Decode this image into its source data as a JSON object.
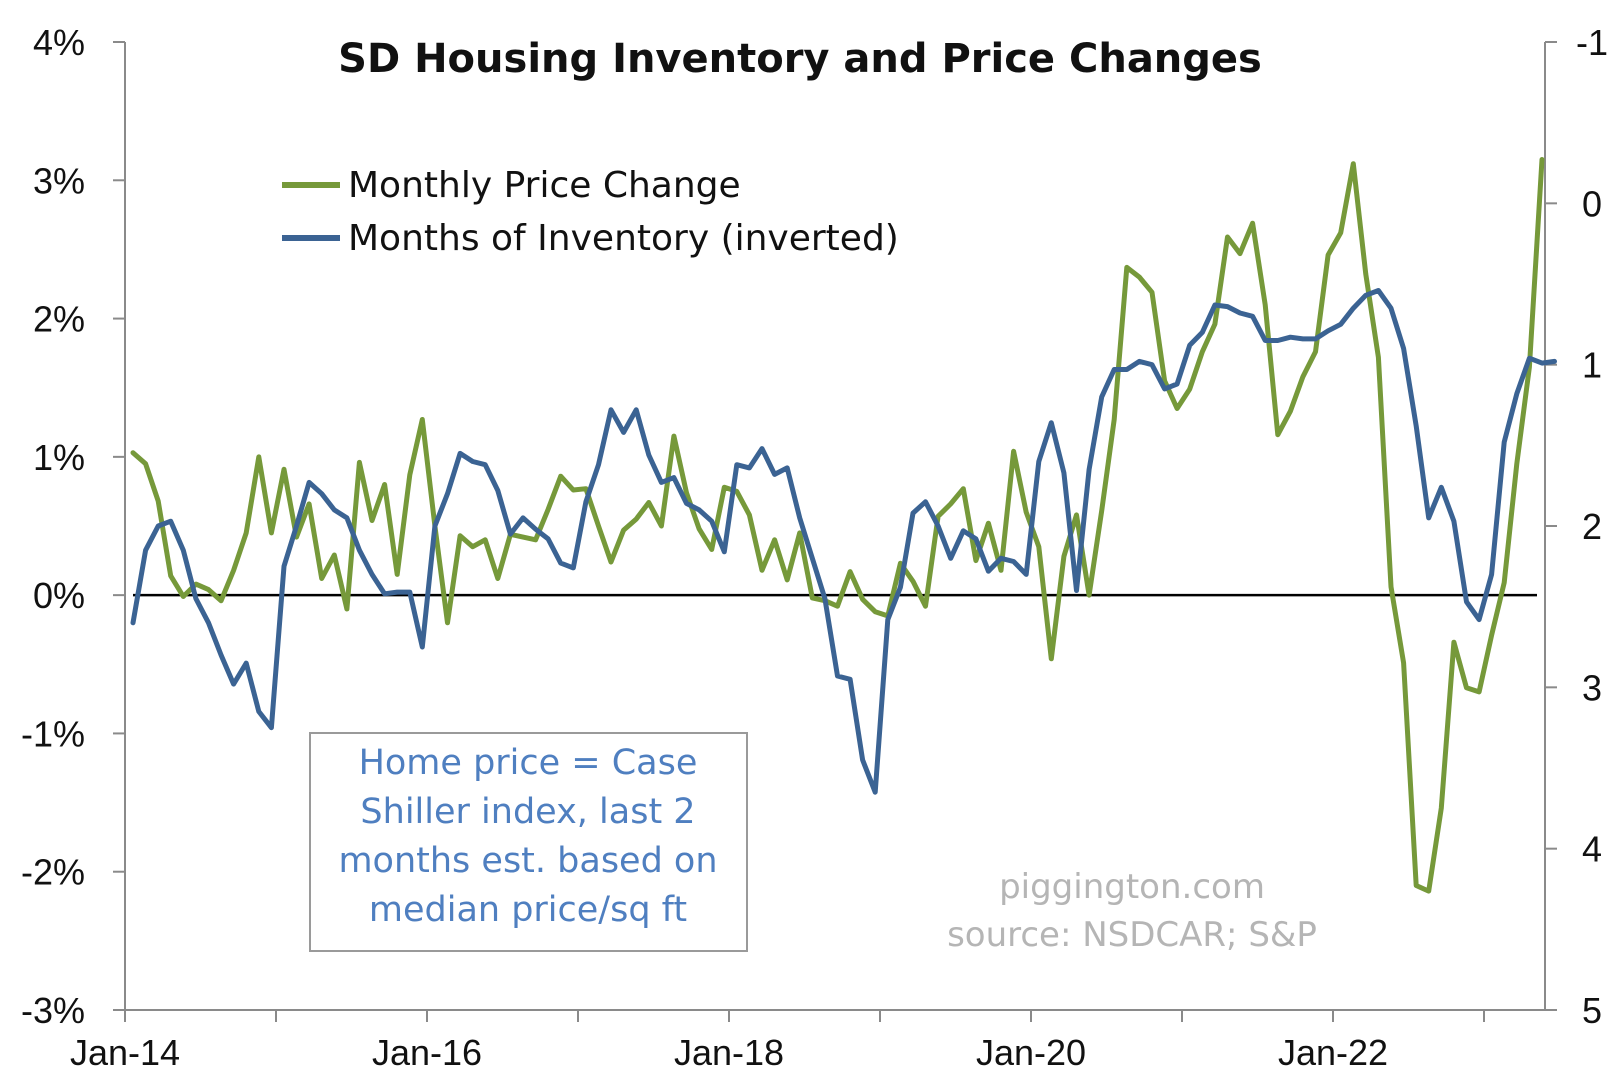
{
  "chart_data": {
    "type": "line",
    "title": "SD Housing Inventory and Price Changes",
    "x_start": "Jan-14",
    "x_tick_labels": [
      "Jan-14",
      "Jan-16",
      "Jan-18",
      "Jan-20",
      "Jan-22"
    ],
    "y_left": {
      "range": [
        -3,
        4
      ],
      "tick_values": [
        4,
        3,
        2,
        1,
        0,
        -1,
        -2,
        -3
      ],
      "tick_labels": [
        "4%",
        "3%",
        "2%",
        "1%",
        "0%",
        "-1%",
        "-2%",
        "-3%"
      ]
    },
    "y_right": {
      "range": [
        -1,
        5
      ],
      "inverted": true,
      "tick_values": [
        -1,
        0,
        1,
        2,
        3,
        4,
        5
      ],
      "tick_labels": [
        "-1",
        "0",
        "1",
        "2",
        "3",
        "4",
        "5"
      ]
    },
    "zero_line": true,
    "grid": false,
    "legend_position": "top-left",
    "series": [
      {
        "name": "Monthly Price Change",
        "axis": "left",
        "color": "#76993a",
        "values": [
          1.03,
          0.95,
          0.68,
          0.14,
          -0.01,
          0.08,
          0.04,
          -0.04,
          0.18,
          0.45,
          1.0,
          0.45,
          0.91,
          0.42,
          0.66,
          0.12,
          0.29,
          -0.1,
          0.96,
          0.54,
          0.8,
          0.15,
          0.87,
          1.27,
          0.5,
          -0.2,
          0.43,
          0.35,
          0.4,
          0.12,
          0.44,
          0.42,
          0.4,
          0.62,
          0.86,
          0.76,
          0.77,
          0.5,
          0.24,
          0.47,
          0.55,
          0.67,
          0.5,
          1.15,
          0.74,
          0.48,
          0.33,
          0.78,
          0.75,
          0.58,
          0.18,
          0.4,
          0.11,
          0.45,
          -0.02,
          -0.04,
          -0.08,
          0.17,
          -0.03,
          -0.12,
          -0.15,
          0.23,
          0.1,
          -0.08,
          0.57,
          0.66,
          0.77,
          0.25,
          0.52,
          0.18,
          1.04,
          0.6,
          0.35,
          -0.46,
          0.28,
          0.58,
          0.0,
          0.61,
          1.27,
          2.37,
          2.3,
          2.19,
          1.55,
          1.35,
          1.49,
          1.76,
          1.96,
          2.59,
          2.47,
          2.69,
          2.1,
          1.16,
          1.33,
          1.58,
          1.76,
          2.46,
          2.62,
          3.12,
          2.32,
          1.72,
          0.06,
          -0.49,
          -2.1,
          -2.14,
          -1.54,
          -0.34,
          -0.67,
          -0.7,
          -0.29,
          0.09,
          0.95,
          1.65,
          3.15
        ]
      },
      {
        "name": "Months of Inventory (inverted)",
        "axis": "right",
        "color": "#3b6393",
        "values": [
          2.6,
          2.15,
          2.0,
          1.97,
          2.15,
          2.45,
          2.6,
          2.8,
          2.98,
          2.85,
          3.15,
          3.25,
          2.25,
          2.0,
          1.73,
          1.8,
          1.9,
          1.95,
          2.15,
          2.3,
          2.42,
          2.41,
          2.41,
          2.75,
          2.0,
          1.8,
          1.55,
          1.6,
          1.62,
          1.78,
          2.05,
          1.95,
          2.02,
          2.08,
          2.23,
          2.26,
          1.85,
          1.62,
          1.28,
          1.42,
          1.28,
          1.56,
          1.73,
          1.7,
          1.86,
          1.9,
          1.97,
          2.16,
          1.62,
          1.64,
          1.52,
          1.68,
          1.64,
          1.95,
          2.2,
          2.45,
          2.93,
          2.95,
          3.45,
          3.65,
          2.58,
          2.38,
          1.92,
          1.85,
          2.0,
          2.2,
          2.03,
          2.08,
          2.28,
          2.2,
          2.22,
          2.3,
          1.6,
          1.36,
          1.67,
          2.4,
          1.65,
          1.2,
          1.03,
          1.03,
          0.98,
          1.0,
          1.15,
          1.12,
          0.88,
          0.8,
          0.63,
          0.64,
          0.68,
          0.7,
          0.85,
          0.85,
          0.83,
          0.84,
          0.84,
          0.79,
          0.75,
          0.65,
          0.57,
          0.54,
          0.65,
          0.9,
          1.38,
          1.95,
          1.76,
          1.97,
          2.47,
          2.58,
          2.3,
          1.48,
          1.18,
          0.96,
          0.99,
          0.98
        ]
      }
    ],
    "annotations": [
      "Home price = Case",
      "Shiller index, last 2",
      "months est. based on",
      "median price/sq ft"
    ],
    "watermark": [
      "piggington.com",
      "source: NSDCAR; S&P"
    ]
  }
}
